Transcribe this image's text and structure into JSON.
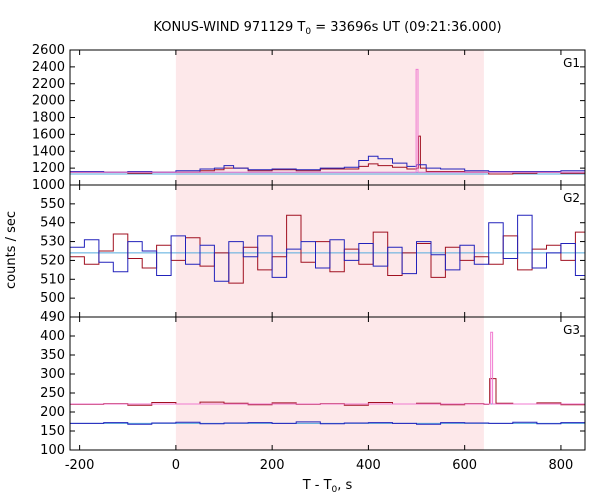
{
  "chart_data": {
    "type": "line",
    "title": "KONUS-WIND 971129 T₀ = 33696s UT (09:21:36.000)",
    "title_parts": {
      "prefix": "KONUS-WIND 971129 T",
      "subscript": "0",
      "suffix": " = 33696s UT (09:21:36.000)"
    },
    "xlabel_parts": {
      "prefix": "T - T",
      "subscript": "0",
      "suffix": ", s"
    },
    "ylabel": "counts / sec",
    "xlim": [
      -220,
      850
    ],
    "xticks": [
      -200,
      0,
      200,
      400,
      600,
      800
    ],
    "grid": false,
    "legend": "none",
    "colors": {
      "dark_red": "#a01020",
      "blue": "#2222bb",
      "pink": "#f07ad0",
      "light_blue": "#55aadd",
      "highlight": "#fde8ea"
    },
    "highlight_interval": [
      0,
      640
    ],
    "panels": [
      {
        "label": "G1",
        "ylim": [
          1000,
          2600
        ],
        "yticks": [
          1000,
          1200,
          1400,
          1600,
          1800,
          2000,
          2200,
          2400,
          2600
        ],
        "background_levels": [
          1130,
          1150
        ],
        "series": [
          {
            "color": "dark_red",
            "x": [
              -220,
              -150,
              -100,
              -50,
              0,
              50,
              80,
              100,
              150,
              200,
              250,
              300,
              350,
              380,
              400,
              420,
              450,
              480,
              500,
              504,
              508,
              520,
              550,
              600,
              650,
              700,
              750,
              800,
              850
            ],
            "values": [
              1150,
              1150,
              1140,
              1150,
              1150,
              1170,
              1180,
              1200,
              1170,
              1180,
              1170,
              1190,
              1190,
              1220,
              1250,
              1230,
              1210,
              1190,
              1200,
              1580,
              1200,
              1160,
              1160,
              1150,
              1130,
              1140,
              1150,
              1140,
              1150
            ]
          },
          {
            "color": "blue",
            "x": [
              -220,
              -150,
              -100,
              -50,
              0,
              50,
              80,
              100,
              120,
              150,
              200,
              250,
              300,
              350,
              380,
              400,
              420,
              450,
              480,
              500,
              520,
              550,
              600,
              650,
              700,
              750,
              800,
              850
            ],
            "values": [
              1160,
              1150,
              1160,
              1150,
              1170,
              1190,
              1200,
              1230,
              1200,
              1180,
              1190,
              1180,
              1200,
              1210,
              1290,
              1340,
              1310,
              1260,
              1220,
              1240,
              1200,
              1190,
              1170,
              1160,
              1160,
              1160,
              1170,
              1160
            ]
          },
          {
            "color": "pink",
            "x": [
              -220,
              498,
              499,
              502,
              503,
              850
            ],
            "values": [
              1150,
              1150,
              2370,
              2370,
              1150,
              1150
            ]
          }
        ]
      },
      {
        "label": "G2",
        "ylim": [
          490,
          560
        ],
        "yticks": [
          490,
          500,
          510,
          520,
          530,
          540,
          550
        ],
        "background_levels": [
          524
        ],
        "series": [
          {
            "color": "dark_red",
            "x": [
              -220,
              -190,
              -160,
              -130,
              -100,
              -70,
              -40,
              -10,
              20,
              50,
              80,
              110,
              140,
              170,
              200,
              230,
              260,
              290,
              320,
              350,
              380,
              410,
              440,
              470,
              500,
              530,
              560,
              590,
              620,
              650,
              680,
              710,
              740,
              770,
              800,
              830,
              850
            ],
            "values": [
              522,
              518,
              525,
              534,
              521,
              516,
              528,
              520,
              532,
              517,
              524,
              508,
              527,
              515,
              522,
              544,
              519,
              530,
              514,
              526,
              518,
              535,
              512,
              524,
              529,
              511,
              527,
              520,
              522,
              518,
              533,
              515,
              526,
              528,
              520,
              535,
              524
            ]
          },
          {
            "color": "blue",
            "x": [
              -220,
              -190,
              -160,
              -130,
              -100,
              -70,
              -40,
              -10,
              20,
              50,
              80,
              110,
              140,
              170,
              200,
              230,
              260,
              290,
              320,
              350,
              380,
              410,
              440,
              470,
              500,
              530,
              560,
              590,
              620,
              650,
              680,
              710,
              740,
              770,
              800,
              830,
              850
            ],
            "values": [
              527,
              531,
              519,
              514,
              530,
              525,
              512,
              533,
              518,
              528,
              509,
              530,
              522,
              533,
              511,
              526,
              530,
              516,
              531,
              520,
              529,
              517,
              527,
              513,
              530,
              523,
              515,
              528,
              518,
              540,
              521,
              544,
              516,
              524,
              529,
              512,
              530
            ]
          }
        ]
      },
      {
        "label": "G3",
        "ylim": [
          100,
          450
        ],
        "yticks": [
          100,
          150,
          200,
          250,
          300,
          350,
          400
        ],
        "background_levels": [
          221,
          170
        ],
        "series": [
          {
            "color": "dark_red",
            "x": [
              -220,
              -150,
              -100,
              -50,
              0,
              50,
              100,
              150,
              200,
              250,
              300,
              350,
              400,
              450,
              500,
              550,
              600,
              640,
              650,
              652,
              658,
              665,
              700,
              750,
              800,
              850
            ],
            "values": [
              220,
              222,
              218,
              225,
              221,
              226,
              223,
              219,
              224,
              220,
              222,
              218,
              225,
              221,
              223,
              219,
              222,
              220,
              221,
              288,
              288,
              223,
              221,
              224,
              219,
              222
            ]
          },
          {
            "color": "blue",
            "x": [
              -220,
              -150,
              -100,
              -50,
              0,
              50,
              100,
              150,
              200,
              250,
              300,
              350,
              400,
              450,
              500,
              550,
              600,
              650,
              700,
              750,
              800,
              850
            ],
            "values": [
              170,
              172,
              168,
              171,
              173,
              169,
              171,
              172,
              170,
              174,
              169,
              171,
              172,
              170,
              168,
              172,
              171,
              170,
              173,
              169,
              172,
              171
            ]
          },
          {
            "color": "pink",
            "x": [
              -220,
              653,
              654,
              657,
              658,
              850
            ],
            "values": [
              221,
              221,
              410,
              410,
              221,
              221
            ]
          }
        ]
      }
    ]
  }
}
